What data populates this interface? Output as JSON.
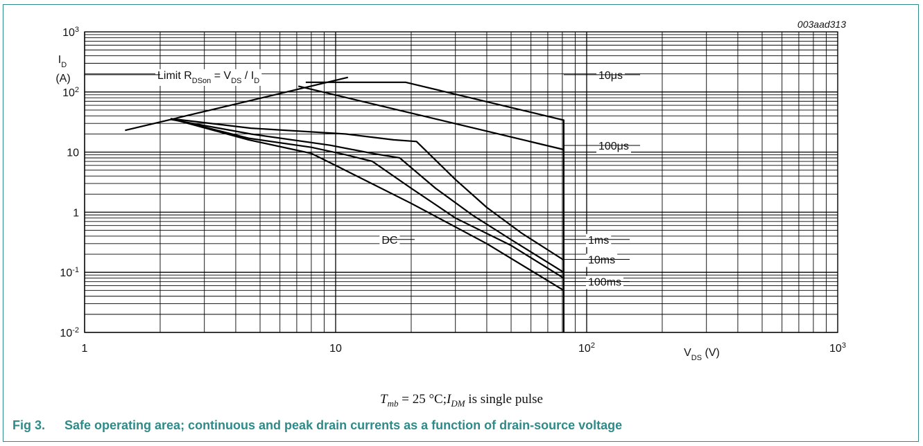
{
  "figure_id": "003aad313",
  "condition": {
    "t_symbol": "T",
    "t_sub": "mb",
    "t_value": " = 25 °C;",
    "i_symbol": "I",
    "i_sub": "DM",
    "i_text": "is single pulse"
  },
  "caption": {
    "number": "Fig 3.",
    "text": "Safe operating area; continuous and peak drain currents as a function of drain-source voltage"
  },
  "chart_data": {
    "type": "line",
    "x_scale": "log",
    "y_scale": "log",
    "xlim": [
      1,
      1000
    ],
    "ylim": [
      0.01,
      1000
    ],
    "grid": true,
    "xlabel": {
      "main": "V",
      "sub": "DS",
      "unit": "(V)"
    },
    "ylabel": {
      "main": "I",
      "sub": "D",
      "unit": "(A)"
    },
    "x_ticks": [
      {
        "value": 1,
        "base": "1",
        "exp": ""
      },
      {
        "value": 10,
        "base": "10",
        "exp": ""
      },
      {
        "value": 100,
        "base": "10",
        "exp": "2"
      },
      {
        "value": 1000,
        "base": "10",
        "exp": "3"
      }
    ],
    "y_ticks": [
      {
        "value": 0.01,
        "base": "10",
        "exp": "-2"
      },
      {
        "value": 0.1,
        "base": "10",
        "exp": "-1"
      },
      {
        "value": 1,
        "base": "1",
        "exp": ""
      },
      {
        "value": 10,
        "base": "10",
        "exp": ""
      },
      {
        "value": 100,
        "base": "10",
        "exp": "2"
      },
      {
        "value": 1000,
        "base": "10",
        "exp": "3"
      }
    ],
    "limit_label": {
      "prefix": "Limit R",
      "sub1": "DSon",
      "mid": " = V",
      "sub2": "DS",
      "mid2": " / I",
      "sub3": "D"
    },
    "series": [
      {
        "key": "limit",
        "x": [
          1.45,
          11.2
        ],
        "y": [
          23,
          175
        ]
      },
      {
        "key": "10us",
        "name": "10μs",
        "x": [
          7.6,
          19,
          81,
          81
        ],
        "y": [
          145,
          145,
          34,
          0.01
        ]
      },
      {
        "key": "100us",
        "name": "100μs",
        "x": [
          7.1,
          81
        ],
        "y": [
          125,
          11
        ]
      },
      {
        "key": "1ms",
        "name": "1ms",
        "x": [
          2.2,
          4.6,
          11,
          17,
          21,
          30,
          40,
          55,
          81
        ],
        "y": [
          36,
          25,
          20,
          16,
          15,
          3.5,
          1.2,
          0.45,
          0.16
        ]
      },
      {
        "key": "10ms",
        "name": "10ms",
        "x": [
          2.2,
          4.6,
          9.5,
          14,
          18,
          25,
          35,
          50,
          81
        ],
        "y": [
          35,
          20,
          13,
          9.5,
          8,
          2.5,
          0.9,
          0.35,
          0.1
        ]
      },
      {
        "key": "100ms",
        "name": "100ms",
        "x": [
          2.2,
          4.5,
          8,
          11,
          14,
          20,
          30,
          50,
          81
        ],
        "y": [
          36,
          17,
          12,
          9,
          7,
          2.5,
          0.8,
          0.28,
          0.08
        ]
      },
      {
        "key": "dc",
        "name": "DC",
        "x": [
          2.2,
          4.5,
          8,
          10,
          20,
          40,
          81
        ],
        "y": [
          36,
          16,
          9.5,
          6,
          1.4,
          0.3,
          0.05
        ]
      }
    ],
    "curve_labels": [
      {
        "key": "10us",
        "text": "10μs",
        "x": 81,
        "y": 165,
        "label_x": 110
      },
      {
        "key": "100us",
        "text": "100μs",
        "x": 81,
        "y": 11,
        "label_x": 110
      },
      {
        "key": "1ms",
        "text": "1ms",
        "x": 81,
        "y": 0.3,
        "label_x": 100
      },
      {
        "key": "10ms",
        "text": "10ms",
        "x": 81,
        "y": 0.14,
        "label_x": 100
      },
      {
        "key": "100ms",
        "text": "100ms",
        "x": 81,
        "y": 0.06,
        "label_x": 100
      },
      {
        "key": "dc",
        "text": "DC",
        "x": 20,
        "y": 0.3,
        "label_x": 16
      }
    ]
  }
}
